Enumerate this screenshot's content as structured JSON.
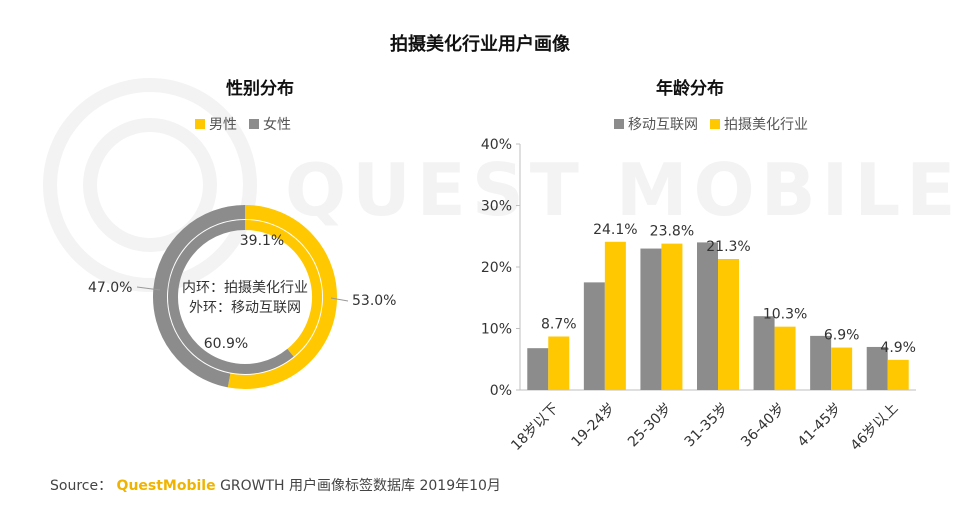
{
  "title": "拍摄美化行业用户画像",
  "watermark": "QUEST MOBILE",
  "colors": {
    "yellow": "#FFC800",
    "gray": "#8C8C8C",
    "axis": "#BFBFBF"
  },
  "footer": {
    "source_label": "Source：",
    "brand": "QuestMobile",
    "text": "GROWTH 用户画像标签数据库  2019年10月"
  },
  "chart_data": [
    {
      "type": "pie",
      "title": "性别分布",
      "legend": [
        "男性",
        "女性"
      ],
      "center_text": [
        "内环：拍摄美化行业",
        "外环：移动互联网"
      ],
      "rings": [
        {
          "name": "外环：移动互联网",
          "values": [
            53.0,
            47.0
          ],
          "labels": [
            "53.0%",
            "47.0%"
          ]
        },
        {
          "name": "内环：拍摄美化行业",
          "values": [
            39.1,
            60.9
          ],
          "labels": [
            "39.1%",
            "60.9%"
          ]
        }
      ]
    },
    {
      "type": "bar",
      "title": "年龄分布",
      "categories": [
        "18岁以下",
        "19-24岁",
        "25-30岁",
        "31-35岁",
        "36-40岁",
        "41-45岁",
        "46岁以上"
      ],
      "series": [
        {
          "name": "移动互联网",
          "values": [
            6.8,
            17.5,
            23.0,
            24.0,
            12.0,
            8.8,
            7.0
          ]
        },
        {
          "name": "拍摄美化行业",
          "values": [
            8.7,
            24.1,
            23.8,
            21.3,
            10.3,
            6.9,
            4.9
          ],
          "labels": [
            "8.7%",
            "24.1%",
            "23.8%",
            "21.3%",
            "10.3%",
            "6.9%",
            "4.9%"
          ]
        }
      ],
      "ylim": [
        0,
        40
      ],
      "yticks": [
        "0%",
        "10%",
        "20%",
        "30%",
        "40%"
      ],
      "legend_position": "top"
    }
  ]
}
